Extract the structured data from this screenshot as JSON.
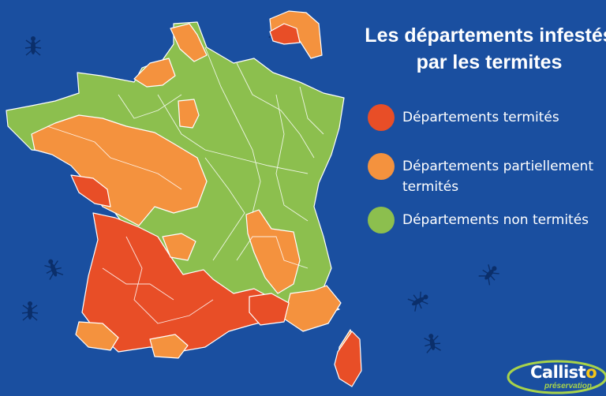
{
  "title": {
    "line1": "Les départements infestés",
    "line2": "par les termites"
  },
  "legend": [
    {
      "label": "Départements termités",
      "label_line2": "",
      "color": "#e84e27"
    },
    {
      "label": "Départements partiellement",
      "label_line2": "termités",
      "color": "#f4923e"
    },
    {
      "label": "Départements non termités",
      "label_line2": "",
      "color": "#8cbf4e"
    }
  ],
  "colors": {
    "background": "#1a4fa0",
    "infested": "#e84e27",
    "partial": "#f4923e",
    "not_infested": "#8cbf4e",
    "border": "#ffffff"
  },
  "logo": {
    "brand_prefix": "Callist",
    "brand_suffix": "o",
    "tagline": "préservation"
  },
  "icons": [
    "termite-icon",
    "map-of-france"
  ]
}
